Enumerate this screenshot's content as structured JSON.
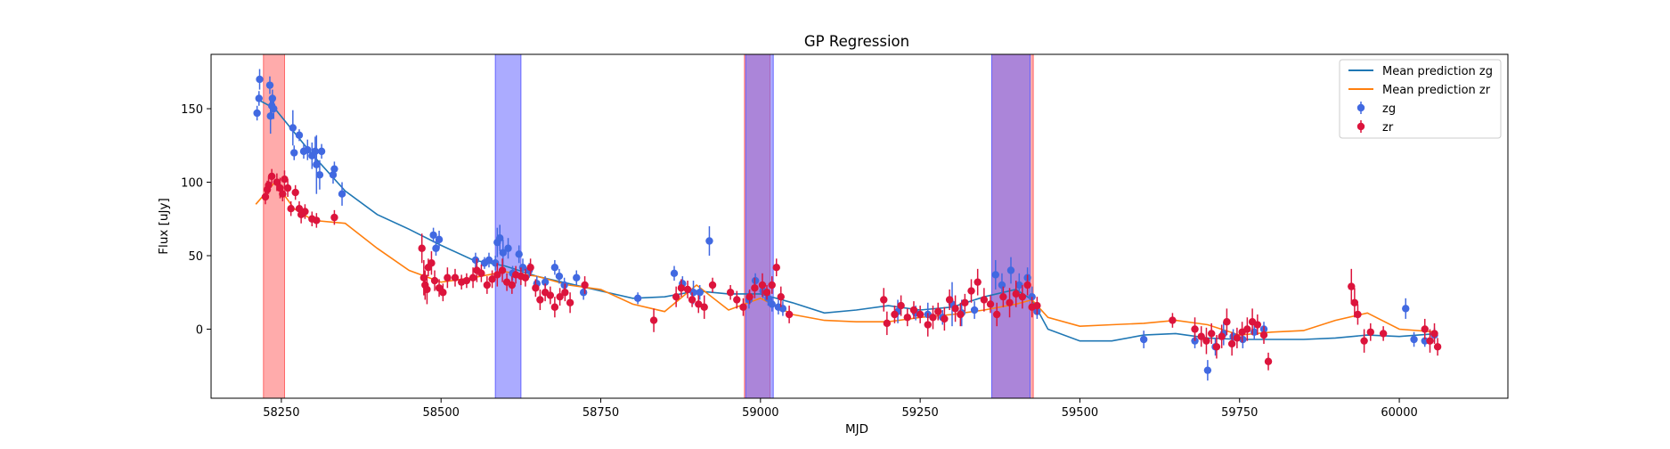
{
  "chart_data": {
    "type": "scatter",
    "title": "GP Regression",
    "xlabel": "MJD",
    "ylabel": "Flux [uJy]",
    "xlim": [
      58140,
      60170
    ],
    "ylim": [
      -47,
      187
    ],
    "xticks": [
      58250,
      58500,
      58750,
      59000,
      59250,
      59500,
      59750,
      60000
    ],
    "yticks": [
      0,
      50,
      100,
      150
    ],
    "grid": false,
    "legend_position": "top-right",
    "colors": {
      "zg": "#1f77b4",
      "zr": "#ff7f0e",
      "zg_points": "#4169e1",
      "zr_points": "#dc143c",
      "band_red": "#ff6666",
      "band_blue": "#6666ff",
      "band_overlap": "#c266a3"
    },
    "shaded_regions": [
      {
        "band": "zr",
        "x0": 58222,
        "x1": 58255
      },
      {
        "band": "zg",
        "x0": 58585,
        "x1": 58625
      },
      {
        "band": "zr",
        "x0": 58975,
        "x1": 59015
      },
      {
        "band": "zg",
        "x0": 58977,
        "x1": 59020
      },
      {
        "band": "zr",
        "x0": 59362,
        "x1": 59427
      },
      {
        "band": "zg",
        "x0": 59362,
        "x1": 59422
      }
    ],
    "series": [
      {
        "name": "Mean prediction zg",
        "kind": "line",
        "x": [
          58210,
          58240,
          58270,
          58300,
          58350,
          58400,
          58450,
          58500,
          58550,
          58600,
          58650,
          58700,
          58750,
          58800,
          58850,
          58900,
          58950,
          59000,
          59050,
          59100,
          59150,
          59200,
          59250,
          59300,
          59350,
          59400,
          59425,
          59450,
          59500,
          59550,
          59600,
          59650,
          59700,
          59750,
          59800,
          59850,
          59900,
          59950,
          60000,
          60060
        ],
        "y": [
          157,
          150,
          134,
          118,
          94,
          78,
          68,
          57,
          47,
          43,
          36,
          31,
          26,
          21,
          22,
          26,
          24,
          24,
          18,
          11,
          13,
          16,
          13,
          15,
          22,
          27,
          20,
          0,
          -8,
          -8,
          -4,
          -3,
          -6,
          -7,
          -7,
          -7,
          -6,
          -4,
          -5,
          -3
        ]
      },
      {
        "name": "Mean prediction zr",
        "kind": "line",
        "x": [
          58210,
          58240,
          58270,
          58300,
          58350,
          58400,
          58450,
          58500,
          58550,
          58600,
          58650,
          58700,
          58750,
          58800,
          58850,
          58900,
          58950,
          59000,
          59050,
          59100,
          59150,
          59200,
          59250,
          59300,
          59350,
          59400,
          59425,
          59450,
          59500,
          59550,
          59600,
          59650,
          59700,
          59750,
          59800,
          59850,
          59900,
          59950,
          60000,
          60060
        ],
        "y": [
          85,
          100,
          82,
          74,
          72,
          55,
          40,
          32,
          35,
          39,
          36,
          30,
          27,
          17,
          12,
          30,
          13,
          21,
          10,
          6,
          5,
          5,
          8,
          10,
          13,
          17,
          20,
          8,
          2,
          3,
          4,
          6,
          3,
          -4,
          -2,
          -1,
          6,
          11,
          0,
          -2
        ]
      },
      {
        "name": "zg",
        "kind": "errorbar",
        "x": [
          58212,
          58215,
          58216,
          58232,
          58233,
          58235,
          58236,
          58238,
          58268,
          58270,
          58278,
          58285,
          58291,
          58298,
          58303,
          58305,
          58310,
          58313,
          58331,
          58333,
          58345,
          58488,
          58492,
          58497,
          58554,
          58568,
          58575,
          58585,
          58588,
          58592,
          58597,
          58605,
          58612,
          58622,
          58628,
          58638,
          58650,
          58663,
          58678,
          58685,
          58693,
          58712,
          58723,
          58808,
          58865,
          58878,
          58895,
          58905,
          58920,
          58982,
          58992,
          59004,
          59012,
          59018,
          59028,
          59035,
          59215,
          59243,
          59262,
          59285,
          59300,
          59315,
          59335,
          59368,
          59378,
          59392,
          59405,
          59418,
          59425,
          59433,
          59600,
          59680,
          59700,
          59712,
          59725,
          59740,
          59755,
          59773,
          59788,
          60010,
          60023,
          60040,
          60055
        ],
        "y": [
          147,
          157,
          170,
          166,
          145,
          152,
          157,
          150,
          137,
          120,
          132,
          121,
          122,
          118,
          121,
          112,
          105,
          121,
          105,
          109,
          92,
          64,
          55,
          61,
          47,
          45,
          47,
          45,
          59,
          62,
          52,
          55,
          38,
          51,
          42,
          40,
          31,
          32,
          42,
          36,
          30,
          35,
          25,
          21,
          38,
          31,
          25,
          25,
          60,
          20,
          33,
          26,
          21,
          17,
          15,
          14,
          12,
          11,
          10,
          8,
          17,
          11,
          13,
          37,
          30,
          40,
          30,
          35,
          22,
          12,
          -7,
          -8,
          -28,
          -12,
          -3,
          -5,
          -7,
          -2,
          0,
          14,
          -7,
          -8,
          -4
        ],
        "yerr": [
          5,
          5,
          7,
          6,
          12,
          7,
          6,
          7,
          12,
          5,
          4,
          5,
          7,
          9,
          10,
          20,
          10,
          5,
          6,
          5,
          8,
          5,
          5,
          6,
          5,
          4,
          5,
          5,
          10,
          9,
          9,
          7,
          5,
          6,
          6,
          5,
          5,
          4,
          5,
          5,
          5,
          5,
          5,
          4,
          5,
          5,
          8,
          5,
          10,
          6,
          5,
          5,
          5,
          5,
          5,
          5,
          8,
          5,
          8,
          5,
          15,
          9,
          6,
          10,
          8,
          9,
          8,
          7,
          7,
          5,
          6,
          5,
          7,
          6,
          8,
          5,
          6,
          5,
          5,
          7,
          5,
          4,
          5
        ]
      },
      {
        "name": "zr",
        "kind": "errorbar",
        "x": [
          58225,
          58228,
          58230,
          58235,
          58243,
          58248,
          58252,
          58255,
          58260,
          58265,
          58272,
          58278,
          58281,
          58287,
          58298,
          58305,
          58333,
          58470,
          58473,
          58475,
          58478,
          58480,
          58485,
          58490,
          58497,
          58503,
          58510,
          58522,
          58532,
          58540,
          58550,
          58556,
          58563,
          58572,
          58580,
          58588,
          58596,
          58603,
          58611,
          58617,
          58625,
          58632,
          58640,
          58648,
          58655,
          58663,
          58671,
          58678,
          58686,
          58694,
          58702,
          58725,
          58833,
          58868,
          58876,
          58886,
          58893,
          58903,
          58912,
          58925,
          58953,
          58963,
          58973,
          58983,
          58991,
          59003,
          59010,
          59018,
          59025,
          59032,
          59045,
          59193,
          59198,
          59210,
          59220,
          59230,
          59240,
          59250,
          59262,
          59270,
          59278,
          59288,
          59296,
          59305,
          59313,
          59320,
          59330,
          59340,
          59350,
          59360,
          59370,
          59380,
          59390,
          59400,
          59410,
          59418,
          59425,
          59433,
          59645,
          59680,
          59690,
          59698,
          59706,
          59714,
          59722,
          59730,
          59738,
          59746,
          59754,
          59762,
          59770,
          59778,
          59788,
          59795,
          59925,
          59930,
          59935,
          59945,
          59955,
          59975,
          60040,
          60048,
          60055,
          60060
        ],
        "y": [
          90,
          95,
          98,
          104,
          100,
          96,
          92,
          102,
          96,
          82,
          93,
          82,
          78,
          80,
          75,
          74,
          76,
          55,
          35,
          30,
          27,
          42,
          45,
          33,
          28,
          25,
          35,
          35,
          32,
          33,
          35,
          40,
          38,
          30,
          34,
          37,
          40,
          32,
          30,
          37,
          36,
          35,
          42,
          28,
          20,
          25,
          23,
          15,
          22,
          25,
          18,
          30,
          6,
          22,
          28,
          27,
          20,
          17,
          15,
          30,
          25,
          20,
          15,
          22,
          28,
          30,
          25,
          30,
          42,
          22,
          10,
          20,
          4,
          10,
          16,
          8,
          13,
          10,
          3,
          8,
          12,
          7,
          20,
          14,
          10,
          18,
          26,
          32,
          20,
          17,
          10,
          22,
          18,
          24,
          22,
          30,
          15,
          16,
          6,
          0,
          -5,
          -8,
          -3,
          -12,
          -5,
          5,
          -10,
          -6,
          -2,
          0,
          5,
          3,
          -4,
          -22,
          29,
          18,
          10,
          -8,
          -2,
          -3,
          0,
          -8,
          -3,
          -12
        ],
        "yerr": [
          5,
          6,
          6,
          5,
          6,
          7,
          5,
          6,
          6,
          5,
          5,
          5,
          6,
          5,
          5,
          5,
          5,
          10,
          12,
          10,
          10,
          6,
          8,
          7,
          6,
          6,
          7,
          6,
          5,
          5,
          7,
          8,
          6,
          6,
          6,
          8,
          8,
          6,
          6,
          6,
          6,
          6,
          6,
          6,
          7,
          6,
          6,
          7,
          6,
          6,
          7,
          6,
          8,
          7,
          6,
          6,
          5,
          6,
          8,
          5,
          5,
          6,
          6,
          5,
          7,
          8,
          5,
          6,
          6,
          7,
          6,
          8,
          8,
          6,
          7,
          6,
          6,
          6,
          8,
          8,
          6,
          8,
          7,
          9,
          8,
          6,
          8,
          9,
          8,
          6,
          8,
          7,
          10,
          9,
          8,
          7,
          7,
          6,
          5,
          8,
          7,
          9,
          7,
          8,
          8,
          9,
          8,
          7,
          7,
          8,
          9,
          7,
          6,
          6,
          12,
          10,
          7,
          8,
          6,
          5,
          7,
          8,
          7,
          6
        ]
      }
    ],
    "legend": [
      {
        "label": "Mean prediction zg",
        "marker": "line",
        "series": "zg"
      },
      {
        "label": "Mean prediction zr",
        "marker": "line",
        "series": "zr"
      },
      {
        "label": "zg",
        "marker": "errorbar",
        "series": "zg"
      },
      {
        "label": "zr",
        "marker": "errorbar",
        "series": "zr"
      }
    ]
  }
}
